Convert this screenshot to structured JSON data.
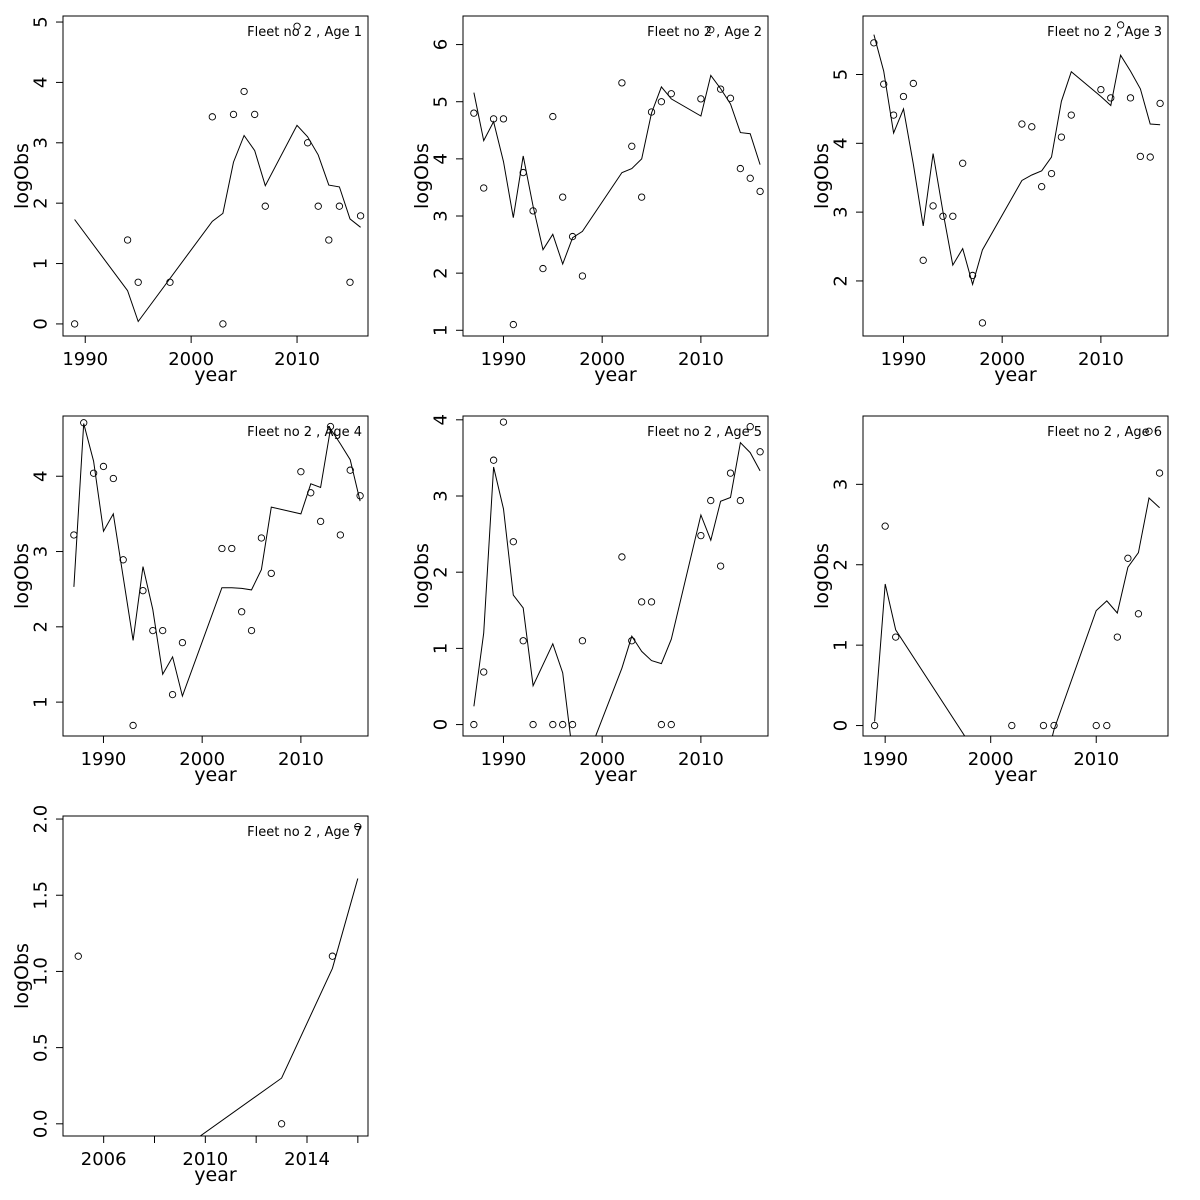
{
  "chart_data": [
    {
      "type": "scatter",
      "title": "Fleet no 2 , Age 1",
      "xlabel": "year",
      "ylabel": "logObs",
      "xlim": [
        1987.9,
        2016.7
      ],
      "ylim": [
        -0.2,
        5.1
      ],
      "xticks": [
        1990,
        2000,
        2010
      ],
      "yticks": [
        0,
        1,
        2,
        3,
        4,
        5
      ],
      "series": [
        {
          "kind": "points",
          "x": [
            1989,
            1994,
            1995,
            1998,
            2002,
            2003,
            2004,
            2005,
            2006,
            2007,
            2010,
            2011,
            2012,
            2013,
            2014,
            2015,
            2016
          ],
          "y": [
            0,
            1.39,
            0.69,
            0.69,
            3.43,
            0,
            3.47,
            3.85,
            3.47,
            1.95,
            4.93,
            3.0,
            1.95,
            1.39,
            1.95,
            0.69,
            1.79
          ]
        },
        {
          "kind": "line",
          "x": [
            1989,
            1994,
            1995,
            2002,
            2003,
            2004,
            2005,
            2006,
            2007,
            2010,
            2011,
            2012,
            2013,
            2014,
            2015,
            2016
          ],
          "y": [
            1.73,
            0.55,
            0.04,
            1.7,
            1.83,
            2.68,
            3.12,
            2.87,
            2.29,
            3.29,
            3.1,
            2.8,
            2.3,
            2.27,
            1.74,
            1.6
          ]
        }
      ]
    },
    {
      "type": "scatter",
      "title": "Fleet no 2 , Age 2",
      "xlabel": "year",
      "ylabel": "logObs",
      "xlim": [
        1985.9,
        2016.8
      ],
      "ylim": [
        0.9,
        6.5
      ],
      "xticks": [
        1990,
        2000,
        2010
      ],
      "yticks": [
        1,
        2,
        3,
        4,
        5,
        6
      ],
      "series": [
        {
          "kind": "points",
          "x": [
            1987,
            1988,
            1989,
            1990,
            1991,
            1992,
            1993,
            1994,
            1995,
            1996,
            1997,
            1998,
            2002,
            2003,
            2004,
            2005,
            2006,
            2007,
            2010,
            2011,
            2012,
            2013,
            2014,
            2015,
            2016
          ],
          "y": [
            4.8,
            3.49,
            4.7,
            4.7,
            1.1,
            3.76,
            3.09,
            2.08,
            4.74,
            3.33,
            2.64,
            1.95,
            5.33,
            4.22,
            3.33,
            4.82,
            5.0,
            5.14,
            5.05,
            6.26,
            5.22,
            5.06,
            3.83,
            3.66,
            3.43
          ]
        },
        {
          "kind": "line",
          "x": [
            1987,
            1988,
            1989,
            1990,
            1991,
            1992,
            1993,
            1994,
            1995,
            1996,
            1997,
            1998,
            2002,
            2003,
            2004,
            2005,
            2006,
            2007,
            2010,
            2011,
            2012,
            2013,
            2014,
            2015,
            2016
          ],
          "y": [
            5.16,
            4.32,
            4.65,
            3.95,
            2.97,
            4.05,
            3.17,
            2.41,
            2.68,
            2.16,
            2.62,
            2.73,
            3.76,
            3.83,
            4.0,
            4.8,
            5.26,
            5.05,
            4.75,
            5.46,
            5.23,
            4.96,
            4.46,
            4.44,
            3.9
          ]
        }
      ]
    },
    {
      "type": "scatter",
      "title": "Fleet no 2 , Age 3",
      "xlabel": "year",
      "ylabel": "logObs",
      "xlim": [
        1985.9,
        2016.8
      ],
      "ylim": [
        1.2,
        5.85
      ],
      "xticks": [
        1990,
        2000,
        2010
      ],
      "yticks": [
        2,
        3,
        4,
        5
      ],
      "series": [
        {
          "kind": "points",
          "x": [
            1987,
            1988,
            1989,
            1990,
            1991,
            1992,
            1993,
            1994,
            1995,
            1996,
            1997,
            1998,
            2002,
            2003,
            2004,
            2005,
            2006,
            2007,
            2010,
            2011,
            2012,
            2013,
            2014,
            2015,
            2016
          ],
          "y": [
            5.46,
            4.86,
            4.41,
            4.68,
            4.87,
            2.3,
            3.09,
            2.94,
            2.94,
            3.71,
            2.08,
            1.39,
            4.28,
            4.24,
            3.37,
            3.56,
            4.09,
            4.41,
            4.78,
            4.66,
            5.72,
            4.66,
            3.81,
            3.8,
            4.58
          ]
        },
        {
          "kind": "line",
          "x": [
            1987,
            1988,
            1989,
            1990,
            1991,
            1992,
            1993,
            1994,
            1995,
            1996,
            1997,
            1998,
            2002,
            2003,
            2004,
            2005,
            2006,
            2007,
            2010,
            2011,
            2012,
            2013,
            2014,
            2015,
            2016
          ],
          "y": [
            5.58,
            5.05,
            4.15,
            4.5,
            3.7,
            2.8,
            3.85,
            3.0,
            2.23,
            2.47,
            1.95,
            2.45,
            3.46,
            3.54,
            3.6,
            3.8,
            4.61,
            5.04,
            4.68,
            4.55,
            5.28,
            5.05,
            4.79,
            4.28,
            4.27
          ]
        }
      ]
    },
    {
      "type": "scatter",
      "title": "Fleet no 2 , Age 4",
      "xlabel": "year",
      "ylabel": "logObs",
      "xlim": [
        1985.9,
        2016.8
      ],
      "ylim": [
        0.55,
        4.8
      ],
      "xticks": [
        1990,
        2000,
        2010
      ],
      "yticks": [
        1,
        2,
        3,
        4
      ],
      "series": [
        {
          "kind": "points",
          "x": [
            1987,
            1988,
            1989,
            1990,
            1991,
            1992,
            1993,
            1994,
            1995,
            1996,
            1997,
            1998,
            2002,
            2003,
            2004,
            2005,
            2006,
            2007,
            2010,
            2011,
            2012,
            2013,
            2014,
            2015,
            2016
          ],
          "y": [
            3.22,
            4.71,
            4.04,
            4.13,
            3.97,
            2.89,
            0.69,
            2.48,
            1.95,
            1.95,
            1.1,
            1.79,
            3.04,
            3.04,
            2.2,
            1.95,
            3.18,
            2.71,
            4.06,
            3.78,
            3.4,
            4.66,
            3.22,
            4.08,
            3.74
          ]
        },
        {
          "kind": "line",
          "x": [
            1987,
            1988,
            1989,
            1990,
            1991,
            1992,
            1993,
            1994,
            1995,
            1996,
            1997,
            1998,
            2002,
            2003,
            2004,
            2005,
            2006,
            2007,
            2010,
            2011,
            2012,
            2013,
            2014,
            2015,
            2016
          ],
          "y": [
            2.53,
            4.7,
            4.2,
            3.27,
            3.5,
            2.66,
            1.82,
            2.8,
            2.23,
            1.37,
            1.6,
            1.08,
            2.52,
            2.52,
            2.51,
            2.49,
            2.76,
            3.59,
            3.5,
            3.9,
            3.85,
            4.63,
            4.43,
            4.22,
            3.67
          ]
        }
      ]
    },
    {
      "type": "scatter",
      "title": "Fleet no 2 , Age 5",
      "xlabel": "year",
      "ylabel": "logObs",
      "xlim": [
        1985.9,
        2016.8
      ],
      "ylim": [
        -0.15,
        4.05
      ],
      "xticks": [
        1990,
        2000,
        2010
      ],
      "yticks": [
        0,
        1,
        2,
        3,
        4
      ],
      "series": [
        {
          "kind": "points",
          "x": [
            1987,
            1988,
            1989,
            1990,
            1991,
            1992,
            1993,
            1995,
            1996,
            1997,
            1998,
            2002,
            2003,
            2004,
            2005,
            2006,
            2007,
            2010,
            2011,
            2012,
            2013,
            2014,
            2015,
            2016
          ],
          "y": [
            0,
            0.69,
            3.47,
            3.97,
            2.4,
            1.1,
            0,
            0,
            0,
            0,
            1.1,
            2.2,
            1.1,
            1.61,
            1.61,
            0,
            0,
            2.48,
            2.94,
            2.08,
            3.3,
            2.94,
            3.91,
            3.58
          ]
        },
        {
          "kind": "line",
          "x": [
            1987,
            1988,
            1989,
            1990,
            1991,
            1992,
            1993,
            1995,
            1996,
            1997,
            1998,
            2002,
            2003,
            2004,
            2005,
            2006,
            2007,
            2010,
            2011,
            2012,
            2013,
            2014,
            2015,
            2016
          ],
          "y": [
            0.24,
            1.2,
            3.38,
            2.83,
            1.7,
            1.53,
            0.51,
            1.06,
            0.68,
            -0.38,
            -0.6,
            0.74,
            1.16,
            0.96,
            0.84,
            0.8,
            1.12,
            2.75,
            2.42,
            2.93,
            2.98,
            3.7,
            3.57,
            3.33
          ]
        }
      ]
    },
    {
      "type": "scatter",
      "title": "Fleet no 2 , Age 6",
      "xlabel": "year",
      "ylabel": "logObs",
      "xlim": [
        1987.9,
        2016.8
      ],
      "ylim": [
        -0.13,
        3.85
      ],
      "xticks": [
        1990,
        2000,
        2010
      ],
      "yticks": [
        0,
        1,
        2,
        3
      ],
      "series": [
        {
          "kind": "points",
          "x": [
            1989,
            1990,
            1991,
            2002,
            2005,
            2006,
            2010,
            2011,
            2012,
            2013,
            2014,
            2015,
            2016
          ],
          "y": [
            0,
            2.48,
            1.1,
            0,
            0,
            0,
            0,
            0,
            1.1,
            2.08,
            1.39,
            3.66,
            3.14
          ]
        },
        {
          "kind": "line",
          "x": [
            1989,
            1990,
            1991,
            2002,
            2005,
            2006,
            2010,
            2011,
            2012,
            2013,
            2014,
            2015,
            2016
          ],
          "y": [
            0.05,
            1.76,
            1.19,
            -1.03,
            -0.58,
            -0.05,
            1.43,
            1.55,
            1.4,
            1.97,
            2.15,
            2.83,
            2.71
          ]
        }
      ]
    },
    {
      "type": "scatter",
      "title": "Fleet no 2 , Age 7",
      "xlabel": "year",
      "ylabel": "logObs",
      "xlim": [
        2004.4,
        2016.4
      ],
      "ylim": [
        -0.08,
        2.02
      ],
      "xticks": [
        2006,
        2010,
        2014
      ],
      "xminor": [
        2008,
        2012,
        2016
      ],
      "yticks": [
        0.0,
        0.5,
        1.0,
        1.5,
        2.0
      ],
      "tick_labels_y": [
        "0.0",
        "0.5",
        "1.0",
        "1.5",
        "2.0"
      ],
      "series": [
        {
          "kind": "points",
          "x": [
            2005,
            2013,
            2015,
            2016
          ],
          "y": [
            1.1,
            0,
            1.1,
            1.95
          ]
        },
        {
          "kind": "line",
          "x": [
            2005,
            2013,
            2015,
            2016
          ],
          "y": [
            -0.65,
            0.3,
            1.02,
            1.61
          ]
        }
      ]
    }
  ]
}
